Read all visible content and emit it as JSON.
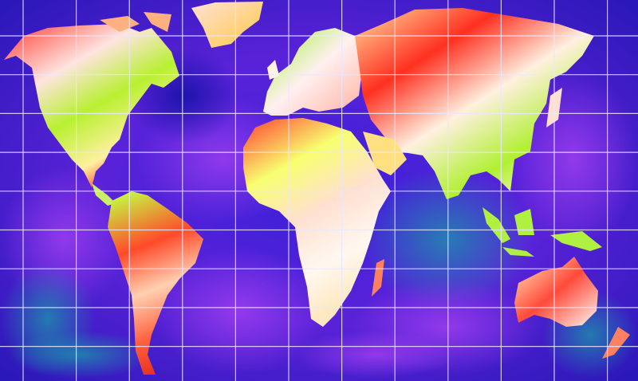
{
  "map": {
    "style": "false-color heat map of world continents with lat/long grid",
    "ocean_colors": [
      "#2a10d8",
      "#7a2ee0",
      "#1a7fa8",
      "#1020b0"
    ],
    "land_colors": [
      "#ff3020",
      "#ffe080",
      "#fff4f0",
      "#9ef020",
      "#f06040"
    ],
    "grid_color": "#e8e8ff",
    "grid": {
      "columns": 12,
      "rows": 10
    }
  }
}
